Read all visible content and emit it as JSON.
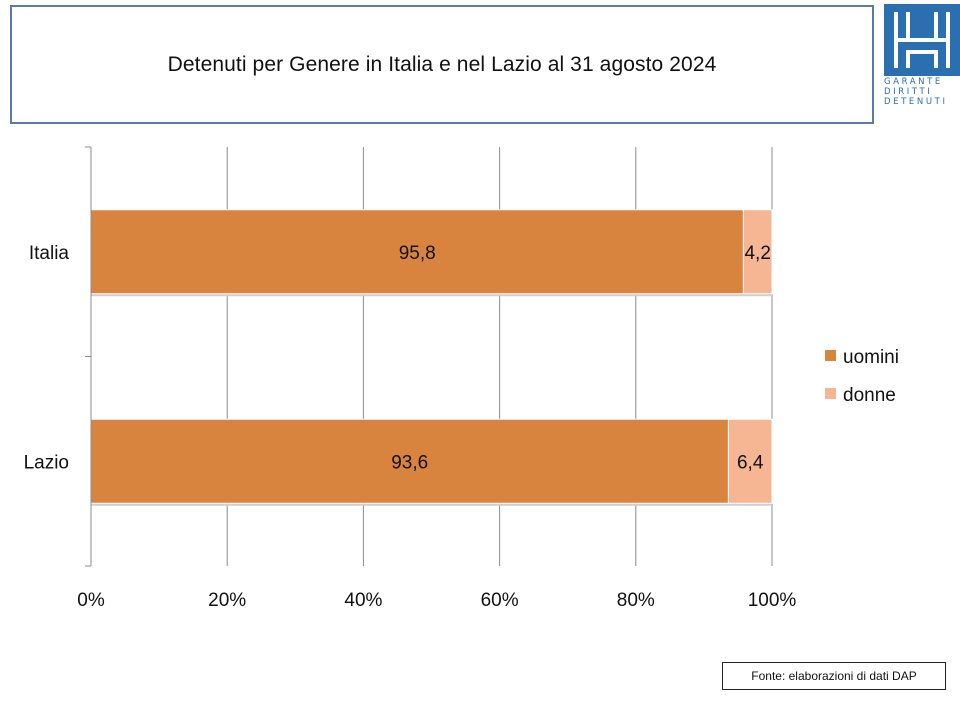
{
  "title": "Detenuti per Genere in Italia e nel Lazio al 31 agosto 2024",
  "logo": {
    "lines": [
      "GARANTE",
      "DIRITTI",
      "DETENUTI"
    ],
    "color": "#2a6fb0"
  },
  "source": "Fonte: elaborazioni di dati DAP",
  "chart_data": {
    "type": "bar",
    "orientation": "horizontal",
    "stacked": "percent",
    "categories": [
      "Italia",
      "Lazio"
    ],
    "series": [
      {
        "name": "uomini",
        "values": [
          95.8,
          93.6
        ],
        "labels": [
          "95,8",
          "93,6"
        ],
        "color": "#d9843e"
      },
      {
        "name": "donne",
        "values": [
          4.2,
          6.4
        ],
        "labels": [
          "4,2",
          "6,4"
        ],
        "color": "#f6b593"
      }
    ],
    "xlim": [
      0,
      100
    ],
    "xticks": [
      "0%",
      "20%",
      "40%",
      "60%",
      "80%",
      "100%"
    ],
    "grid": true,
    "legend": "right"
  }
}
